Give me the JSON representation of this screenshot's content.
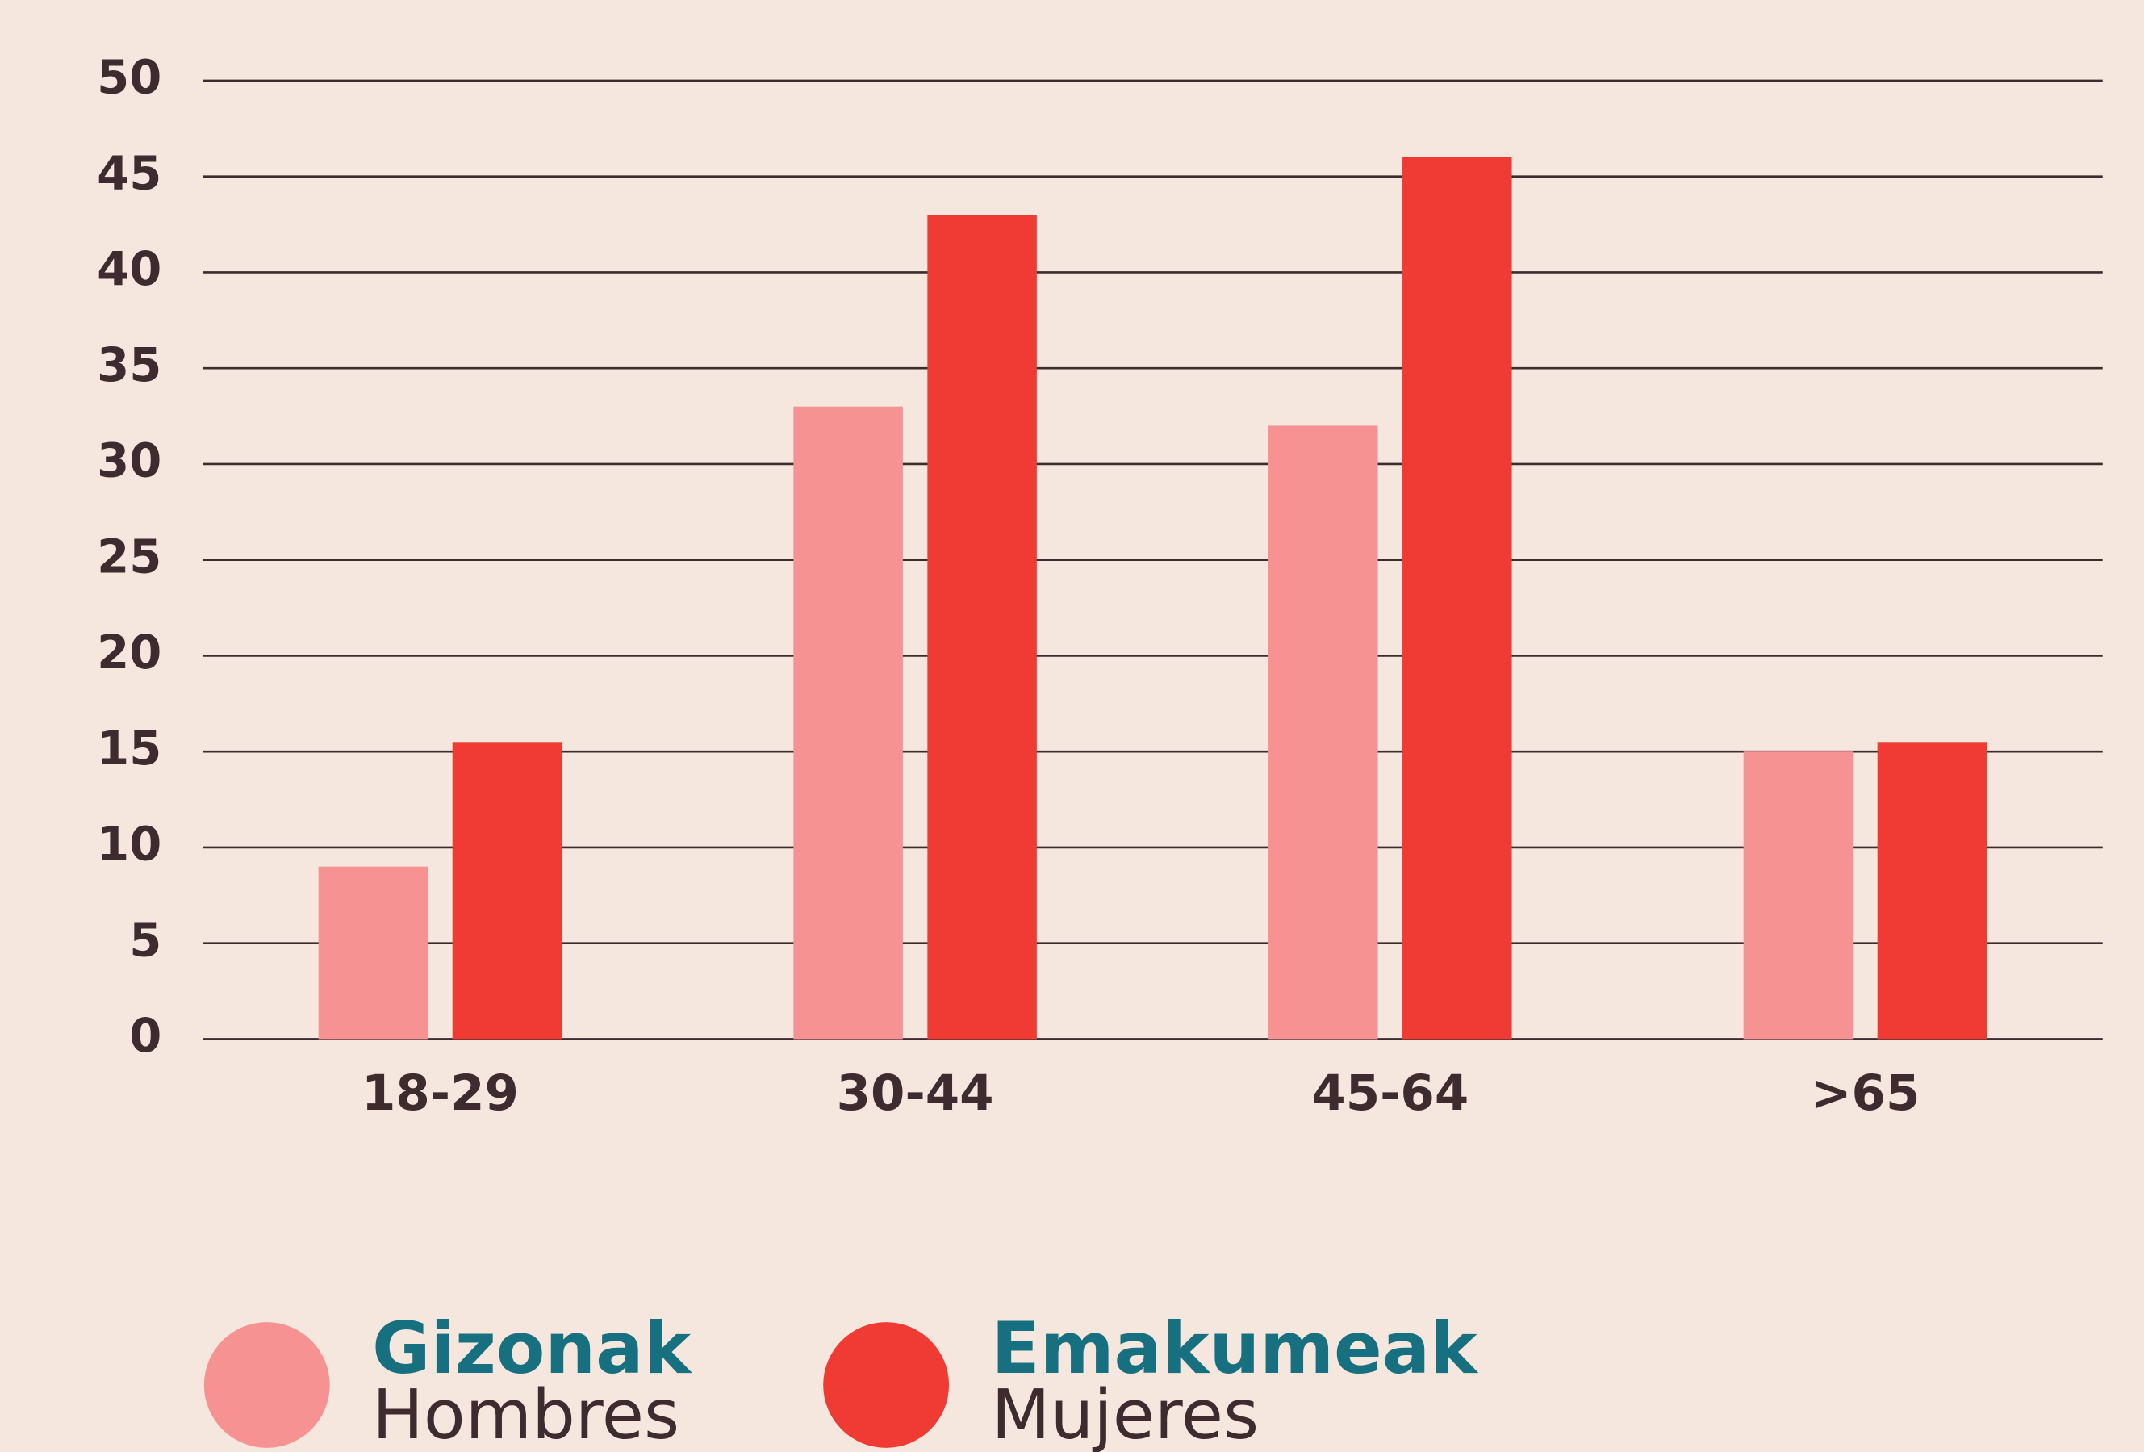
{
  "chart_data": {
    "type": "bar",
    "categories": [
      "18-29",
      "30-44",
      "45-64",
      ">65"
    ],
    "series": [
      {
        "name": "Gizonak",
        "subtitle": "Hombres",
        "color": "#f69292",
        "values": [
          9,
          33,
          32,
          15
        ]
      },
      {
        "name": "Emakumeak",
        "subtitle": "Mujeres",
        "color": "#ef3b33",
        "values": [
          15.5,
          43,
          46,
          15.5
        ]
      }
    ],
    "ylim": [
      0,
      50
    ],
    "yticks": [
      0,
      5,
      10,
      15,
      20,
      25,
      30,
      35,
      40,
      45,
      50
    ],
    "grid": true
  }
}
